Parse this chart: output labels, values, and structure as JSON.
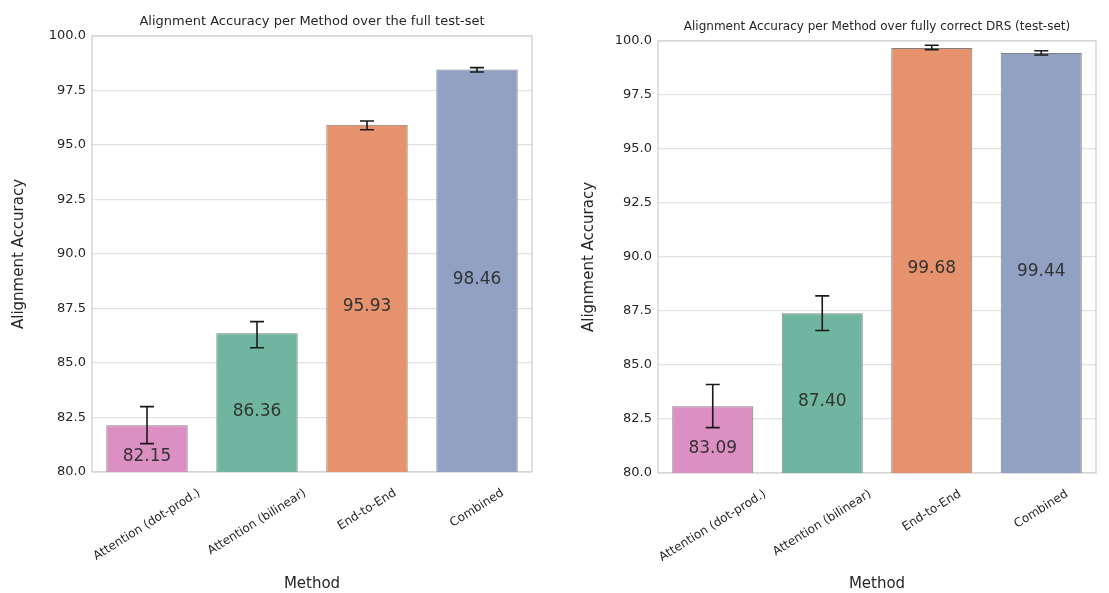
{
  "chart_data": [
    {
      "type": "bar",
      "title": "Alignment Accuracy per Method over the full test-set",
      "xlabel": "Method",
      "ylabel": "Alignment Accuracy",
      "categories": [
        "Attention (dot-prod.)",
        "Attention (bilinear)",
        "End-to-End",
        "Combined"
      ],
      "values": [
        82.15,
        86.36,
        95.93,
        98.46
      ],
      "colors": [
        "#dc8fc3",
        "#6fb59f",
        "#e6936d",
        "#91a1c4"
      ],
      "errors": [
        [
          81.3,
          83.0
        ],
        [
          85.7,
          86.9
        ],
        [
          95.7,
          96.1
        ],
        [
          98.35,
          98.55
        ]
      ],
      "value_labels": [
        "82.15",
        "86.36",
        "95.93",
        "98.46"
      ],
      "ylim": [
        80,
        100
      ],
      "yticks": [
        {
          "value": 80,
          "label": "80.0"
        },
        82.5,
        {
          "value": 85,
          "label": "85.0"
        },
        87.5,
        {
          "value": 90,
          "label": "90.0"
        },
        92.5,
        {
          "value": 95,
          "label": "95.0"
        },
        97.5,
        {
          "value": 100,
          "label": "100.0"
        }
      ],
      "grid": "y"
    },
    {
      "type": "bar",
      "title": "Alignment Accuracy per Method over fully correct DRS (test-set)",
      "xlabel": "Method",
      "ylabel": "Alignment Accuracy",
      "categories": [
        "Attention (dot-prod.)",
        "Attention (bilinear)",
        "End-to-End",
        "Combined"
      ],
      "values": [
        83.09,
        87.4,
        99.68,
        99.44
      ],
      "colors": [
        "#dc8fc3",
        "#6fb59f",
        "#e6936d",
        "#91a1c4"
      ],
      "errors": [
        [
          82.1,
          84.1
        ],
        [
          86.6,
          88.2
        ],
        [
          99.6,
          99.8
        ],
        [
          99.35,
          99.55
        ]
      ],
      "value_labels": [
        "83.09",
        "87.40",
        "99.68",
        "99.44"
      ],
      "ylim": [
        80,
        100
      ],
      "yticks": [
        {
          "value": 80,
          "label": "80.0"
        },
        82.5,
        {
          "value": 85,
          "label": "85.0"
        },
        87.5,
        {
          "value": 90,
          "label": "90.0"
        },
        92.5,
        {
          "value": 95,
          "label": "95.0"
        },
        97.5,
        {
          "value": 100,
          "label": "100.0"
        }
      ],
      "grid": "y"
    }
  ]
}
